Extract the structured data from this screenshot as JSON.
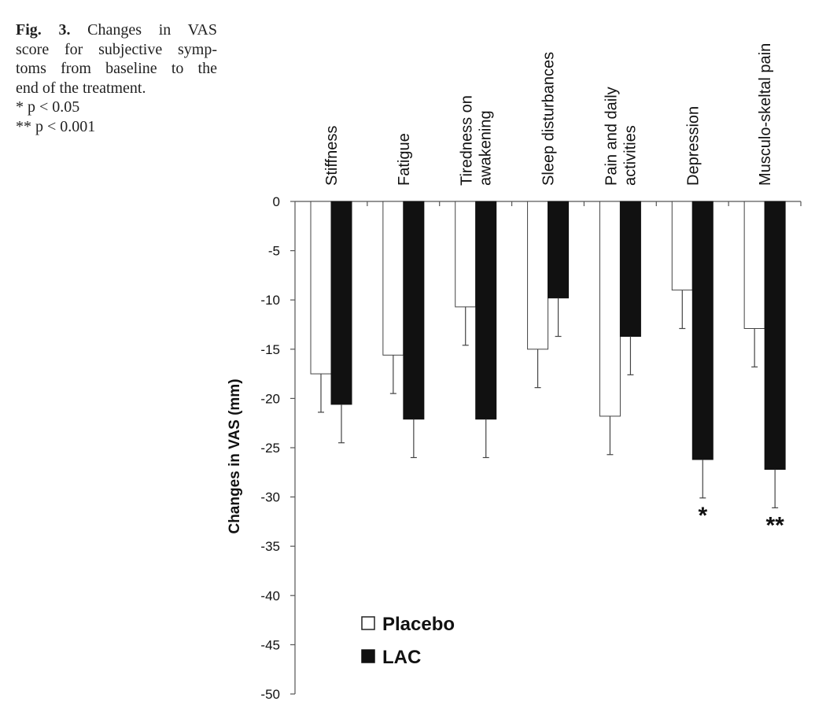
{
  "caption": {
    "label": "Fig. 3.",
    "line1": "Changes in VAS",
    "line2": "score for subjective symp-",
    "line3": "toms from baseline to the",
    "line4": "end of the treatment.",
    "note1": "* p < 0.05",
    "note2": "** p < 0.001"
  },
  "colors": {
    "placebo": "#ffffff",
    "lac": "#111111",
    "axis": "#555555"
  },
  "chart_data": {
    "type": "bar",
    "title": "",
    "xlabel": "",
    "ylabel": "Changes in VAS (mm)",
    "ylim": [
      -50,
      0
    ],
    "yticks": [
      0,
      -5,
      -10,
      -15,
      -20,
      -25,
      -30,
      -35,
      -40,
      -45,
      -50
    ],
    "categories": [
      [
        "Stiffness"
      ],
      [
        "Fatigue"
      ],
      [
        "Tiredness on",
        "awakening"
      ],
      [
        "Sleep  disturbances"
      ],
      [
        "Pain and daily",
        "activities"
      ],
      [
        "Depression"
      ],
      [
        "Musculo-skeltal pain"
      ]
    ],
    "series": [
      {
        "name": "Placebo",
        "values": [
          -17.5,
          -15.6,
          -10.7,
          -15.0,
          -21.8,
          -9.0,
          -12.9
        ],
        "errors": [
          3.9,
          3.9,
          3.9,
          3.9,
          3.9,
          3.9,
          3.9
        ]
      },
      {
        "name": "LAC",
        "values": [
          -20.6,
          -22.1,
          -22.1,
          -9.8,
          -13.7,
          -26.2,
          -27.2
        ],
        "errors": [
          3.9,
          3.9,
          3.9,
          3.9,
          3.9,
          3.9,
          3.9
        ]
      }
    ],
    "significance": [
      "",
      "",
      "",
      "",
      "",
      "*",
      "**"
    ],
    "legend_position": "bottom-left",
    "grid": false
  }
}
